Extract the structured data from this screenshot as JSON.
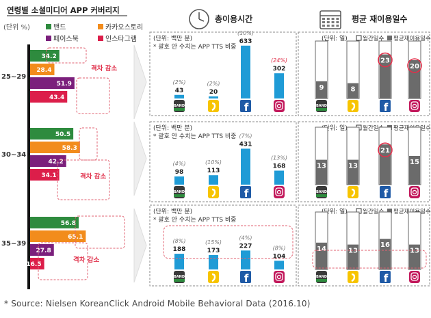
{
  "left_panel": {
    "title": "연령별 소셜미디어 APP 커버리지",
    "unit": "(단위 %)",
    "legend": [
      {
        "label": "밴드",
        "color": "#2e8b3e"
      },
      {
        "label": "카카오스토리",
        "color": "#f28c1c"
      },
      {
        "label": "페이스북",
        "color": "#7b1f7c"
      },
      {
        "label": "인스타그램",
        "color": "#dc1e4a"
      }
    ],
    "gap_label": "격차 감소"
  },
  "time_header": {
    "title": "총이용시간",
    "icon": "clock-icon"
  },
  "days_header": {
    "title": "평균 재이용일수",
    "icon": "calendar-icon"
  },
  "time_panel": {
    "unit": "(단위: 백만 분)",
    "note": "* 괄호 안 수치는 APP TTS 비중"
  },
  "days_panel": {
    "unit": "(단위: 일)",
    "legend_monthly": "월간일수",
    "legend_avg": "평균재이용일수"
  },
  "apps": [
    {
      "name": "band",
      "icon": "band-icon",
      "label": "BAND",
      "color": "#2e8b3e"
    },
    {
      "name": "kakaostory",
      "icon": "kakaostory-icon",
      "label": "",
      "color": "#f7c400"
    },
    {
      "name": "facebook",
      "icon": "facebook-icon",
      "label": "f",
      "color": "#1f5aa6"
    },
    {
      "name": "instagram",
      "icon": "instagram-icon",
      "label": "",
      "color": "#c2185b"
    }
  ],
  "chart_data": [
    {
      "type": "bar",
      "orientation": "horizontal",
      "title": "연령별 소셜미디어 APP 커버리지",
      "unit": "(단위 %)",
      "categories": [
        "25~29",
        "30~34",
        "35~39"
      ],
      "series": [
        {
          "name": "밴드",
          "color": "#2e8b3e",
          "values": [
            34.2,
            50.5,
            56.8
          ]
        },
        {
          "name": "카카오스토리",
          "color": "#f28c1c",
          "values": [
            28.4,
            58.3,
            65.1
          ]
        },
        {
          "name": "페이스북",
          "color": "#7b1f7c",
          "values": [
            51.9,
            42.2,
            27.8
          ]
        },
        {
          "name": "인스타그램",
          "color": "#dc1e4a",
          "values": [
            43.4,
            34.1,
            16.5
          ]
        }
      ],
      "annotations": [
        "격차 감소",
        "격차 감소",
        "격차 감소"
      ]
    },
    {
      "type": "bar",
      "title": "총이용시간",
      "unit": "(단위: 백만 분)",
      "note": "* 괄호 안 수치는 APP TTS 비중",
      "categories": [
        "25~29",
        "30~34",
        "35~39"
      ],
      "apps": [
        "band",
        "kakaostory",
        "facebook",
        "instagram"
      ],
      "values": [
        [
          43,
          20,
          633,
          302
        ],
        [
          98,
          113,
          431,
          168
        ],
        [
          188,
          173,
          227,
          104
        ]
      ],
      "shares": [
        [
          "(2%)",
          "(2%)",
          "(10%)",
          "(24%)"
        ],
        [
          "(4%)",
          "(10%)",
          "(7%)",
          "(13%)"
        ],
        [
          "(8%)",
          "(15%)",
          "(4%)",
          "(8%)"
        ]
      ]
    },
    {
      "type": "bar",
      "title": "평균 재이용일수",
      "unit": "(단위: 일)",
      "legend": [
        "월간일수",
        "평균재이용일수"
      ],
      "categories": [
        "25~29",
        "30~34",
        "35~39"
      ],
      "apps": [
        "band",
        "kakaostory",
        "facebook",
        "instagram"
      ],
      "max": 30,
      "values": [
        [
          9,
          8,
          23,
          20
        ],
        [
          13,
          13,
          21,
          15
        ],
        [
          14,
          13,
          16,
          13
        ]
      ],
      "highlighted": [
        [
          false,
          false,
          true,
          true
        ],
        [
          false,
          false,
          true,
          false
        ],
        [
          false,
          false,
          false,
          false
        ]
      ]
    }
  ],
  "footnote": "* Source: Nielsen KoreanClick Android Mobile Behavioral Data (2016.10)"
}
